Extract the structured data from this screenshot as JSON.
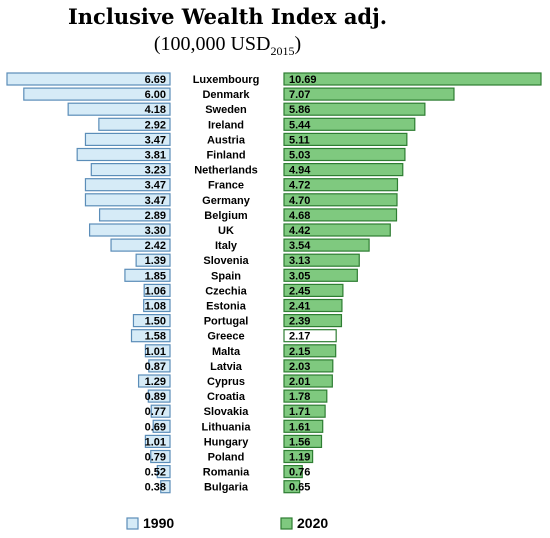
{
  "chart_data": {
    "type": "bar",
    "title": "Inclusive Wealth Index adj.",
    "subtitle_main": "(100,000 USD",
    "subtitle_sub": "2015",
    "subtitle_end": ")",
    "categories": [
      "Luxembourg",
      "Denmark",
      "Sweden",
      "Ireland",
      "Austria",
      "Finland",
      "Netherlands",
      "France",
      "Germany",
      "Belgium",
      "UK",
      "Italy",
      "Slovenia",
      "Spain",
      "Czechia",
      "Estonia",
      "Portugal",
      "Greece",
      "Malta",
      "Latvia",
      "Cyprus",
      "Croatia",
      "Slovakia",
      "Lithuania",
      "Hungary",
      "Poland",
      "Romania",
      "Bulgaria"
    ],
    "series": [
      {
        "name": "1990",
        "values": [
          6.69,
          6.0,
          4.18,
          2.92,
          3.47,
          3.81,
          3.23,
          3.47,
          3.47,
          2.89,
          3.3,
          2.42,
          1.39,
          1.85,
          1.06,
          1.08,
          1.5,
          1.58,
          1.01,
          0.87,
          1.29,
          0.89,
          0.77,
          0.69,
          1.01,
          0.79,
          0.52,
          0.38
        ],
        "labels": [
          "6.69",
          "6.00",
          "4.18",
          "2.92",
          "3.47",
          "3.81",
          "3.23",
          "3.47",
          "3.47",
          "2.89",
          "3.30",
          "2.42",
          "1.39",
          "1.85",
          "1.06",
          "1.08",
          "1.50",
          "1.58",
          "1.01",
          "0.87",
          "1.29",
          "0.89",
          "0.77",
          "0.69",
          "1.01",
          "0.79",
          "0.52",
          "0.38"
        ],
        "color": "#d6ebf7",
        "border": "#5b8db8"
      },
      {
        "name": "2020",
        "values": [
          10.69,
          7.07,
          5.86,
          5.44,
          5.11,
          5.03,
          4.94,
          4.72,
          4.7,
          4.68,
          4.42,
          3.54,
          3.13,
          3.05,
          2.45,
          2.41,
          2.39,
          2.17,
          2.15,
          2.03,
          2.01,
          1.78,
          1.71,
          1.61,
          1.56,
          1.19,
          0.76,
          0.65
        ],
        "labels": [
          "10.69",
          "7.07",
          "5.86",
          "5.44",
          "5.11",
          "5.03",
          "4.94",
          "4.72",
          "4.70",
          "4.68",
          "4.42",
          "3.54",
          "3.13",
          "3.05",
          "2.45",
          "2.41",
          "2.39",
          "2.17",
          "2.15",
          "2.03",
          "2.01",
          "1.78",
          "1.71",
          "1.61",
          "1.56",
          "1.19",
          "0.76",
          "0.65"
        ],
        "color": "#7fc97f",
        "border": "#2e7d32"
      }
    ],
    "highlight": {
      "category": "Greece",
      "series": "2020",
      "color": "#ffffff"
    },
    "legend": {
      "placement": "bottom",
      "labels": [
        "1990",
        "2020"
      ]
    }
  }
}
